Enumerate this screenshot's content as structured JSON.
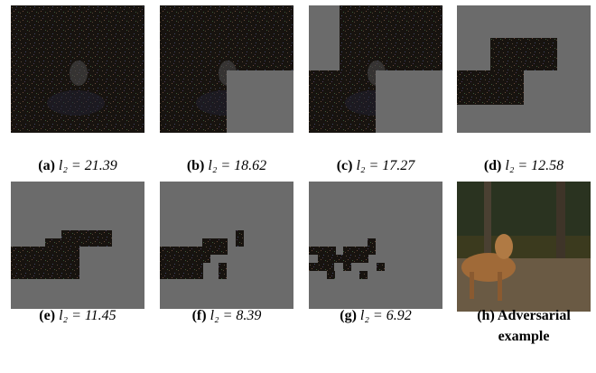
{
  "figure": {
    "panels": [
      {
        "label": "(a)",
        "caption": "l₂ = 21.39"
      },
      {
        "label": "(b)",
        "caption": "l₂ = 18.62"
      },
      {
        "label": "(c)",
        "caption": "l₂ = 17.27"
      },
      {
        "label": "(d)",
        "caption": "l₂ = 12.58"
      },
      {
        "label": "(e)",
        "caption": "l₂ = 11.45"
      },
      {
        "label": "(f)",
        "caption": "l₂ = 8.39"
      },
      {
        "label": "(g)",
        "caption": "l₂ = 6.92"
      },
      {
        "label": "(h)",
        "caption": "Adversarial example"
      }
    ]
  }
}
